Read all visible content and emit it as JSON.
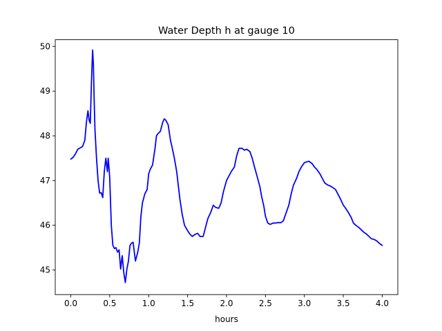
{
  "chart_data": {
    "type": "line",
    "title": "Water Depth h at gauge 10",
    "xlabel": "hours",
    "ylabel": "",
    "xlim": [
      -0.2,
      4.2
    ],
    "ylim": [
      44.45,
      50.15
    ],
    "xticks": [
      0.0,
      0.5,
      1.0,
      1.5,
      2.0,
      2.5,
      3.0,
      3.5,
      4.0
    ],
    "xtick_labels": [
      "0.0",
      "0.5",
      "1.0",
      "1.5",
      "2.0",
      "2.5",
      "3.0",
      "3.5",
      "4.0"
    ],
    "yticks": [
      45,
      46,
      47,
      48,
      49,
      50
    ],
    "ytick_labels": [
      "45",
      "46",
      "47",
      "48",
      "49",
      "50"
    ],
    "grid": false,
    "series": [
      {
        "color": "#0000ff",
        "x": [
          0.0,
          0.03,
          0.06,
          0.09,
          0.12,
          0.15,
          0.18,
          0.2,
          0.22,
          0.235,
          0.25,
          0.265,
          0.28,
          0.29,
          0.3,
          0.31,
          0.33,
          0.35,
          0.37,
          0.39,
          0.41,
          0.43,
          0.45,
          0.47,
          0.48,
          0.49,
          0.5,
          0.52,
          0.54,
          0.56,
          0.58,
          0.6,
          0.62,
          0.64,
          0.66,
          0.68,
          0.7,
          0.72,
          0.74,
          0.76,
          0.78,
          0.8,
          0.83,
          0.86,
          0.88,
          0.9,
          0.92,
          0.95,
          0.98,
          1.0,
          1.02,
          1.05,
          1.08,
          1.1,
          1.12,
          1.15,
          1.18,
          1.2,
          1.22,
          1.25,
          1.28,
          1.3,
          1.33,
          1.36,
          1.38,
          1.4,
          1.43,
          1.46,
          1.5,
          1.53,
          1.56,
          1.6,
          1.63,
          1.66,
          1.7,
          1.73,
          1.76,
          1.8,
          1.83,
          1.86,
          1.9,
          1.93,
          1.96,
          2.0,
          2.03,
          2.06,
          2.1,
          2.13,
          2.16,
          2.2,
          2.23,
          2.26,
          2.3,
          2.33,
          2.36,
          2.4,
          2.43,
          2.45,
          2.48,
          2.5,
          2.53,
          2.56,
          2.6,
          2.63,
          2.66,
          2.7,
          2.73,
          2.76,
          2.8,
          2.83,
          2.86,
          2.9,
          2.93,
          2.96,
          3.0,
          3.03,
          3.06,
          3.1,
          3.13,
          3.16,
          3.2,
          3.23,
          3.26,
          3.3,
          3.33,
          3.36,
          3.4,
          3.43,
          3.46,
          3.5,
          3.53,
          3.56,
          3.6,
          3.63,
          3.66,
          3.7,
          3.73,
          3.76,
          3.8,
          3.83,
          3.86,
          3.9,
          3.93,
          3.96,
          4.0
        ],
        "y": [
          47.48,
          47.52,
          47.6,
          47.7,
          47.73,
          47.76,
          47.9,
          48.3,
          48.56,
          48.35,
          48.28,
          49.2,
          49.92,
          49.6,
          48.8,
          48.15,
          47.5,
          47.0,
          46.72,
          46.73,
          46.62,
          47.2,
          47.5,
          47.2,
          47.5,
          47.3,
          47.05,
          46.0,
          45.55,
          45.48,
          45.5,
          45.4,
          45.45,
          45.02,
          45.32,
          44.95,
          44.72,
          45.02,
          45.2,
          45.55,
          45.6,
          45.62,
          45.2,
          45.4,
          45.6,
          46.2,
          46.5,
          46.7,
          46.8,
          47.15,
          47.25,
          47.35,
          47.7,
          48.0,
          48.05,
          48.1,
          48.3,
          48.38,
          48.35,
          48.25,
          47.9,
          47.75,
          47.5,
          47.2,
          46.9,
          46.6,
          46.25,
          46.0,
          45.88,
          45.8,
          45.75,
          45.8,
          45.82,
          45.75,
          45.75,
          45.95,
          46.15,
          46.3,
          46.45,
          46.4,
          46.38,
          46.5,
          46.75,
          47.0,
          47.1,
          47.2,
          47.3,
          47.55,
          47.72,
          47.72,
          47.68,
          47.7,
          47.65,
          47.5,
          47.3,
          47.05,
          46.85,
          46.65,
          46.42,
          46.2,
          46.05,
          46.02,
          46.05,
          46.05,
          46.06,
          46.06,
          46.1,
          46.25,
          46.45,
          46.7,
          46.9,
          47.05,
          47.2,
          47.3,
          47.4,
          47.42,
          47.43,
          47.38,
          47.3,
          47.25,
          47.15,
          47.05,
          46.95,
          46.9,
          46.88,
          46.85,
          46.8,
          46.7,
          46.6,
          46.45,
          46.38,
          46.3,
          46.18,
          46.05,
          46.0,
          45.95,
          45.9,
          45.85,
          45.8,
          45.75,
          45.7,
          45.68,
          45.65,
          45.6,
          45.55
        ]
      }
    ]
  }
}
